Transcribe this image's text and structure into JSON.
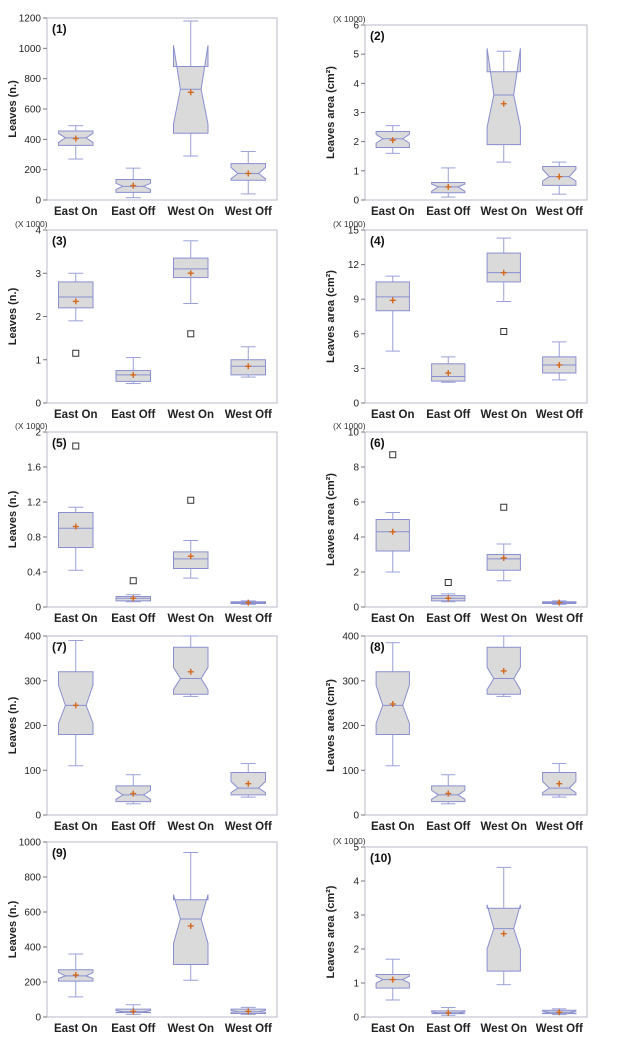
{
  "colors": {
    "frame": "#b9b9c9",
    "box_fill": "#dadada",
    "box_edge": "#8a8fd0",
    "whisker": "#9aa0d6",
    "mean_marker": "#d2691e",
    "outlier": "#333333"
  },
  "chart_data": [
    {
      "type": "box",
      "label": "(1)",
      "ylabel": "Leaves (n.)",
      "multiplier": "",
      "ylim": [
        0,
        1200
      ],
      "yticks": [
        0,
        200,
        400,
        600,
        800,
        1000,
        1200
      ],
      "notched": true,
      "categories": [
        "East On",
        "East Off",
        "West On",
        "West Off"
      ],
      "series": [
        {
          "min": 270,
          "q1": 360,
          "median": 410,
          "q3": 455,
          "max": 490,
          "mean": 405,
          "notch_low": 380,
          "notch_high": 440,
          "outliers": []
        },
        {
          "min": 15,
          "q1": 50,
          "median": 90,
          "q3": 135,
          "max": 210,
          "mean": 95,
          "notch_low": 70,
          "notch_high": 110,
          "outliers": []
        },
        {
          "min": 290,
          "q1": 440,
          "median": 730,
          "q3": 880,
          "max": 1180,
          "mean": 710,
          "notch_low": 500,
          "notch_high": 1020,
          "outliers": []
        },
        {
          "min": 40,
          "q1": 130,
          "median": 175,
          "q3": 240,
          "max": 320,
          "mean": 175,
          "notch_low": 140,
          "notch_high": 215,
          "outliers": []
        }
      ]
    },
    {
      "type": "box",
      "label": "(2)",
      "ylabel": "Leaves area (cm²)",
      "multiplier": "(X 1000)",
      "ylim": [
        0,
        6
      ],
      "yticks": [
        0,
        1,
        2,
        3,
        4,
        5,
        6
      ],
      "notched": true,
      "categories": [
        "East On",
        "East Off",
        "West On",
        "West Off"
      ],
      "series": [
        {
          "min": 1.6,
          "q1": 1.8,
          "median": 2.1,
          "q3": 2.35,
          "max": 2.55,
          "mean": 2.05,
          "notch_low": 1.95,
          "notch_high": 2.25,
          "outliers": []
        },
        {
          "min": 0.1,
          "q1": 0.25,
          "median": 0.45,
          "q3": 0.6,
          "max": 1.1,
          "mean": 0.45,
          "notch_low": 0.3,
          "notch_high": 0.55,
          "outliers": []
        },
        {
          "min": 1.3,
          "q1": 1.9,
          "median": 3.6,
          "q3": 4.4,
          "max": 5.1,
          "mean": 3.3,
          "notch_low": 2.5,
          "notch_high": 5.2,
          "outliers": []
        },
        {
          "min": 0.2,
          "q1": 0.5,
          "median": 0.8,
          "q3": 1.15,
          "max": 1.3,
          "mean": 0.8,
          "notch_low": 0.65,
          "notch_high": 1.05,
          "outliers": []
        }
      ]
    },
    {
      "type": "box",
      "label": "(3)",
      "ylabel": "Leaves (n.)",
      "multiplier": "(X 1000)",
      "ylim": [
        0,
        4
      ],
      "yticks": [
        0,
        1,
        2,
        3,
        4
      ],
      "notched": false,
      "categories": [
        "East On",
        "East Off",
        "West On",
        "West Off"
      ],
      "series": [
        {
          "min": 1.9,
          "q1": 2.2,
          "median": 2.45,
          "q3": 2.8,
          "max": 3.0,
          "mean": 2.35,
          "outliers": [
            1.15
          ]
        },
        {
          "min": 0.45,
          "q1": 0.5,
          "median": 0.65,
          "q3": 0.75,
          "max": 1.05,
          "mean": 0.65,
          "outliers": []
        },
        {
          "min": 2.3,
          "q1": 2.9,
          "median": 3.1,
          "q3": 3.35,
          "max": 3.75,
          "mean": 3.0,
          "outliers": [
            1.6
          ]
        },
        {
          "min": 0.6,
          "q1": 0.65,
          "median": 0.85,
          "q3": 1.0,
          "max": 1.3,
          "mean": 0.85,
          "outliers": []
        }
      ]
    },
    {
      "type": "box",
      "label": "(4)",
      "ylabel": "Leaves area (cm²)",
      "multiplier": "(X 1000)",
      "ylim": [
        0,
        15
      ],
      "yticks": [
        0,
        3,
        6,
        9,
        12,
        15
      ],
      "notched": false,
      "categories": [
        "East On",
        "East Off",
        "West On",
        "West Off"
      ],
      "series": [
        {
          "min": 4.5,
          "q1": 8.0,
          "median": 9.2,
          "q3": 10.5,
          "max": 11.0,
          "mean": 8.9,
          "outliers": []
        },
        {
          "min": 1.8,
          "q1": 1.9,
          "median": 2.3,
          "q3": 3.4,
          "max": 4.0,
          "mean": 2.6,
          "outliers": []
        },
        {
          "min": 8.8,
          "q1": 10.5,
          "median": 11.3,
          "q3": 13.0,
          "max": 14.3,
          "mean": 11.3,
          "outliers": [
            6.2
          ]
        },
        {
          "min": 2.0,
          "q1": 2.6,
          "median": 3.3,
          "q3": 4.0,
          "max": 5.3,
          "mean": 3.3,
          "outliers": []
        }
      ]
    },
    {
      "type": "box",
      "label": "(5)",
      "ylabel": "Leaves (n.)",
      "multiplier": "(X 1000)",
      "ylim": [
        0,
        2
      ],
      "yticks": [
        "0",
        "0.4",
        "0.8",
        "1.2",
        "1.6",
        "2"
      ],
      "notched": false,
      "categories": [
        "East On",
        "East Off",
        "West On",
        "West Off"
      ],
      "series": [
        {
          "min": 0.42,
          "q1": 0.68,
          "median": 0.9,
          "q3": 1.08,
          "max": 1.14,
          "mean": 0.92,
          "outliers": [
            1.84
          ]
        },
        {
          "min": 0.06,
          "q1": 0.07,
          "median": 0.1,
          "q3": 0.12,
          "max": 0.14,
          "mean": 0.1,
          "outliers": [
            0.3
          ]
        },
        {
          "min": 0.33,
          "q1": 0.44,
          "median": 0.55,
          "q3": 0.63,
          "max": 0.76,
          "mean": 0.58,
          "outliers": [
            1.22
          ]
        },
        {
          "min": 0.03,
          "q1": 0.04,
          "median": 0.05,
          "q3": 0.06,
          "max": 0.07,
          "mean": 0.05,
          "outliers": []
        }
      ]
    },
    {
      "type": "box",
      "label": "(6)",
      "ylabel": "Leaves area (cm²)",
      "multiplier": "(X 1000)",
      "ylim": [
        0,
        10
      ],
      "yticks": [
        0,
        2,
        4,
        6,
        8,
        10
      ],
      "notched": false,
      "categories": [
        "East On",
        "East Off",
        "West On",
        "West Off"
      ],
      "series": [
        {
          "min": 2.0,
          "q1": 3.2,
          "median": 4.3,
          "q3": 5.0,
          "max": 5.4,
          "mean": 4.3,
          "outliers": [
            8.7
          ]
        },
        {
          "min": 0.3,
          "q1": 0.35,
          "median": 0.5,
          "q3": 0.65,
          "max": 0.75,
          "mean": 0.5,
          "outliers": [
            1.4
          ]
        },
        {
          "min": 1.5,
          "q1": 2.1,
          "median": 2.75,
          "q3": 3.0,
          "max": 3.6,
          "mean": 2.8,
          "outliers": [
            5.7
          ]
        },
        {
          "min": 0.15,
          "q1": 0.2,
          "median": 0.25,
          "q3": 0.3,
          "max": 0.35,
          "mean": 0.25,
          "outliers": []
        }
      ]
    },
    {
      "type": "box",
      "label": "(7)",
      "ylabel": "Leaves (n.)",
      "multiplier": "",
      "ylim": [
        0,
        400
      ],
      "yticks": [
        0,
        100,
        200,
        300,
        400
      ],
      "notched": true,
      "categories": [
        "East On",
        "East Off",
        "West On",
        "West Off"
      ],
      "series": [
        {
          "min": 110,
          "q1": 180,
          "median": 245,
          "q3": 320,
          "max": 390,
          "mean": 245,
          "notch_low": 205,
          "notch_high": 290,
          "outliers": []
        },
        {
          "min": 25,
          "q1": 30,
          "median": 45,
          "q3": 65,
          "max": 90,
          "mean": 48,
          "notch_low": 35,
          "notch_high": 55,
          "outliers": []
        },
        {
          "min": 265,
          "q1": 270,
          "median": 305,
          "q3": 375,
          "max": 400,
          "mean": 320,
          "notch_low": 280,
          "notch_high": 330,
          "outliers": []
        },
        {
          "min": 40,
          "q1": 45,
          "median": 60,
          "q3": 95,
          "max": 115,
          "mean": 70,
          "notch_low": 50,
          "notch_high": 75,
          "outliers": []
        }
      ]
    },
    {
      "type": "box",
      "label": "(8)",
      "ylabel": "Leaves area (cm²)",
      "multiplier": "",
      "ylim": [
        0,
        400
      ],
      "yticks": [
        0,
        100,
        200,
        300,
        400
      ],
      "notched": true,
      "categories": [
        "East On",
        "East Off",
        "West On",
        "West Off"
      ],
      "series": [
        {
          "min": 110,
          "q1": 180,
          "median": 245,
          "q3": 320,
          "max": 385,
          "mean": 248,
          "notch_low": 205,
          "notch_high": 290,
          "outliers": []
        },
        {
          "min": 25,
          "q1": 30,
          "median": 45,
          "q3": 65,
          "max": 90,
          "mean": 48,
          "notch_low": 35,
          "notch_high": 55,
          "outliers": []
        },
        {
          "min": 265,
          "q1": 270,
          "median": 305,
          "q3": 375,
          "max": 400,
          "mean": 322,
          "notch_low": 280,
          "notch_high": 330,
          "outliers": []
        },
        {
          "min": 40,
          "q1": 45,
          "median": 60,
          "q3": 95,
          "max": 115,
          "mean": 70,
          "notch_low": 50,
          "notch_high": 75,
          "outliers": []
        }
      ]
    },
    {
      "type": "box",
      "label": "(9)",
      "ylabel": "Leaves (n.)",
      "multiplier": "",
      "ylim": [
        0,
        1000
      ],
      "yticks": [
        0,
        200,
        400,
        600,
        800,
        1000
      ],
      "notched": true,
      "categories": [
        "East On",
        "East Off",
        "West On",
        "West Off"
      ],
      "series": [
        {
          "min": 115,
          "q1": 205,
          "median": 235,
          "q3": 270,
          "max": 360,
          "mean": 240,
          "notch_low": 220,
          "notch_high": 255,
          "outliers": []
        },
        {
          "min": 15,
          "q1": 25,
          "median": 30,
          "q3": 45,
          "max": 70,
          "mean": 32,
          "notch_low": 27,
          "notch_high": 38,
          "outliers": []
        },
        {
          "min": 210,
          "q1": 300,
          "median": 560,
          "q3": 670,
          "max": 940,
          "mean": 520,
          "notch_low": 420,
          "notch_high": 700,
          "outliers": []
        },
        {
          "min": 15,
          "q1": 20,
          "median": 30,
          "q3": 45,
          "max": 55,
          "mean": 32,
          "notch_low": 27,
          "notch_high": 38,
          "outliers": []
        }
      ]
    },
    {
      "type": "box",
      "label": "(10)",
      "ylabel": "Leaves area (cm²)",
      "multiplier": "(X 1000)",
      "ylim": [
        0,
        5
      ],
      "yticks": [
        0,
        1,
        2,
        3,
        4,
        5
      ],
      "notched": true,
      "categories": [
        "East On",
        "East Off",
        "West On",
        "West Off"
      ],
      "series": [
        {
          "min": 0.5,
          "q1": 0.85,
          "median": 1.1,
          "q3": 1.25,
          "max": 1.7,
          "mean": 1.1,
          "notch_low": 1.0,
          "notch_high": 1.2,
          "outliers": []
        },
        {
          "min": 0.05,
          "q1": 0.1,
          "median": 0.12,
          "q3": 0.18,
          "max": 0.28,
          "mean": 0.12,
          "notch_low": 0.1,
          "notch_high": 0.15,
          "outliers": []
        },
        {
          "min": 0.95,
          "q1": 1.35,
          "median": 2.6,
          "q3": 3.2,
          "max": 4.4,
          "mean": 2.45,
          "notch_low": 2.0,
          "notch_high": 3.3,
          "outliers": []
        },
        {
          "min": 0.07,
          "q1": 0.1,
          "median": 0.14,
          "q3": 0.2,
          "max": 0.24,
          "mean": 0.14,
          "notch_low": 0.11,
          "notch_high": 0.17,
          "outliers": []
        }
      ]
    }
  ]
}
